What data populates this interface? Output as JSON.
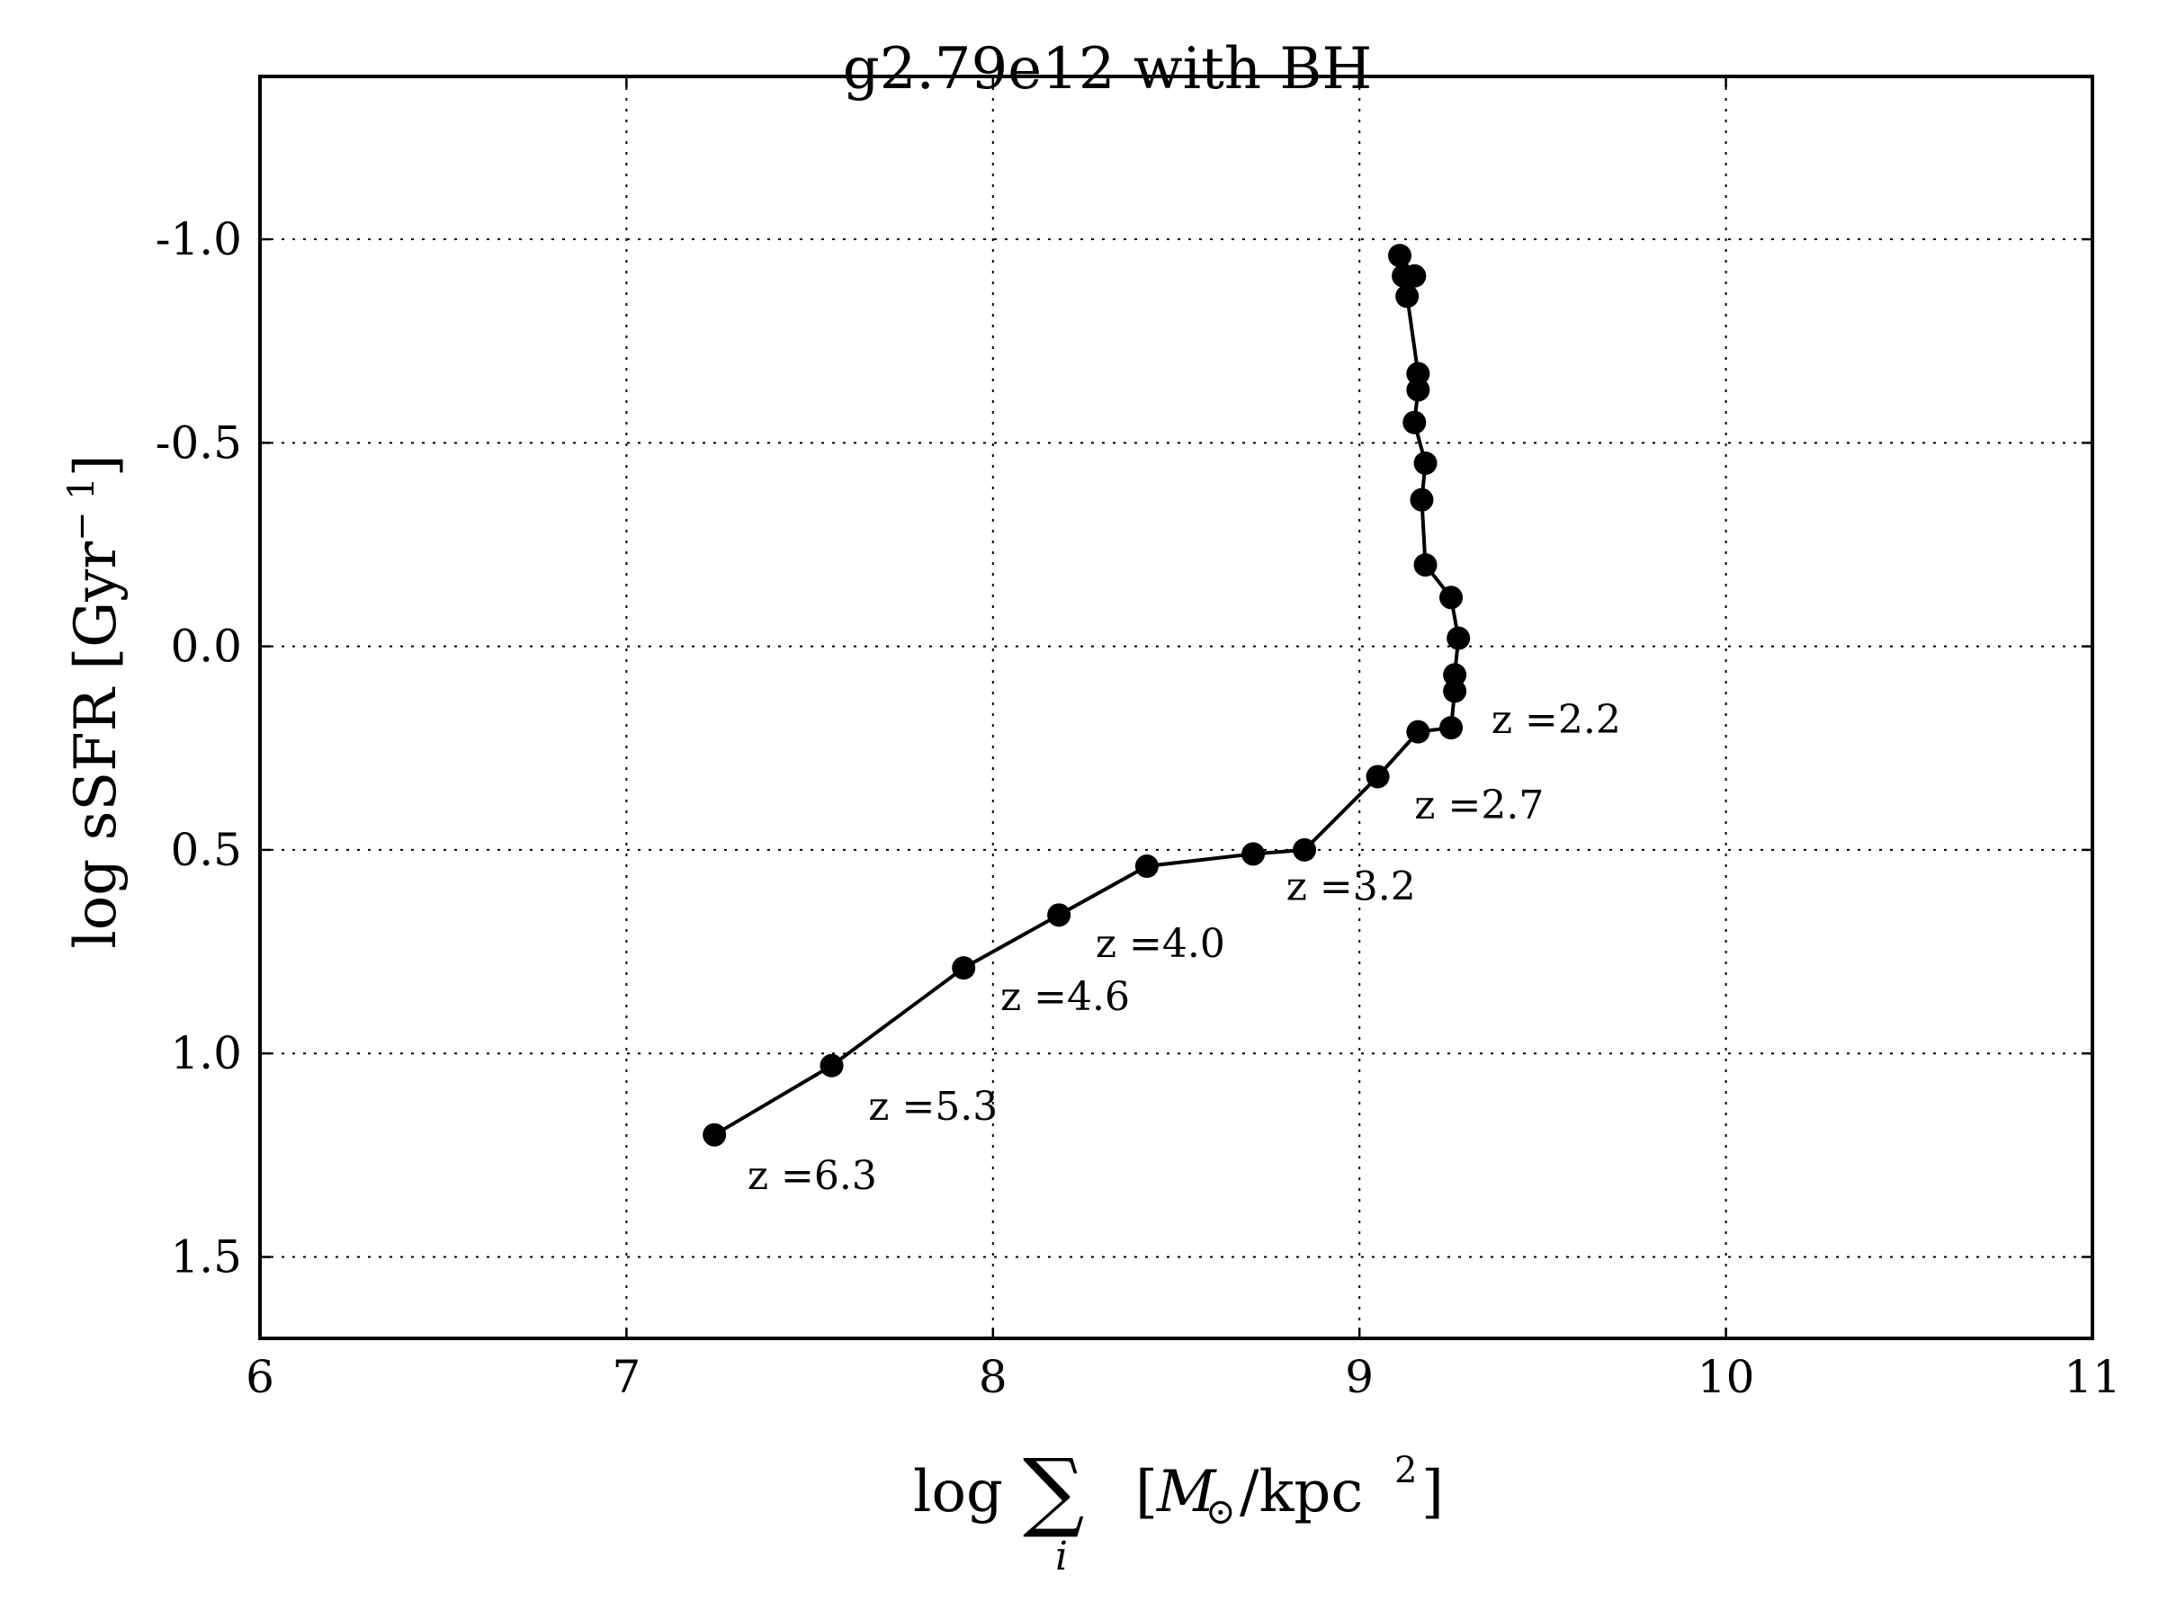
{
  "chart_data": {
    "type": "line",
    "title": "g2.79e12 with BH",
    "xlabel_parts": {
      "prefix": "log",
      "sum": "∑",
      "sub": "i",
      "open": "[",
      "M": "M",
      "sun": "⊙",
      "unit": "/kpc",
      "sup": "2",
      "close": "]"
    },
    "ylabel": "log sSFR [Gyr",
    "ylabel_sup": "− 1",
    "ylabel_close": "]",
    "xlim": [
      6,
      11
    ],
    "ylim": [
      1.7,
      -1.4
    ],
    "y_inverted": true,
    "xticks": [
      6,
      7,
      8,
      9,
      10,
      11
    ],
    "xtick_labels": [
      "6",
      "7",
      "8",
      "9",
      "10",
      "11"
    ],
    "yticks": [
      -1.0,
      -0.5,
      0.0,
      0.5,
      1.0,
      1.5
    ],
    "ytick_labels": [
      "-1.0",
      "-0.5",
      "0.0",
      "0.5",
      "1.0",
      "1.5"
    ],
    "grid": true,
    "marker": "circle",
    "color": "#000000",
    "x": [
      7.24,
      7.56,
      7.92,
      8.18,
      8.42,
      8.71,
      8.85,
      9.05,
      9.16,
      9.25,
      9.26,
      9.26,
      9.27,
      9.25,
      9.18,
      9.17,
      9.18,
      9.15,
      9.16,
      9.16,
      9.13,
      9.12,
      9.15,
      9.11
    ],
    "y": [
      1.2,
      1.03,
      0.79,
      0.66,
      0.54,
      0.51,
      0.5,
      0.32,
      0.21,
      0.2,
      0.11,
      0.07,
      -0.02,
      -0.12,
      -0.2,
      -0.36,
      -0.45,
      -0.55,
      -0.63,
      -0.67,
      -0.86,
      -0.91,
      -0.91,
      -0.96
    ],
    "annotations": [
      {
        "text": "z =6.3",
        "x": 7.33,
        "y": 1.3
      },
      {
        "text": "z =5.3",
        "x": 7.66,
        "y": 1.13
      },
      {
        "text": "z =4.6",
        "x": 8.02,
        "y": 0.86
      },
      {
        "text": "z =4.0",
        "x": 8.28,
        "y": 0.73
      },
      {
        "text": "z =3.2",
        "x": 8.8,
        "y": 0.59
      },
      {
        "text": "z =2.7",
        "x": 9.15,
        "y": 0.39
      },
      {
        "text": "z =2.2",
        "x": 9.36,
        "y": 0.18
      }
    ]
  }
}
